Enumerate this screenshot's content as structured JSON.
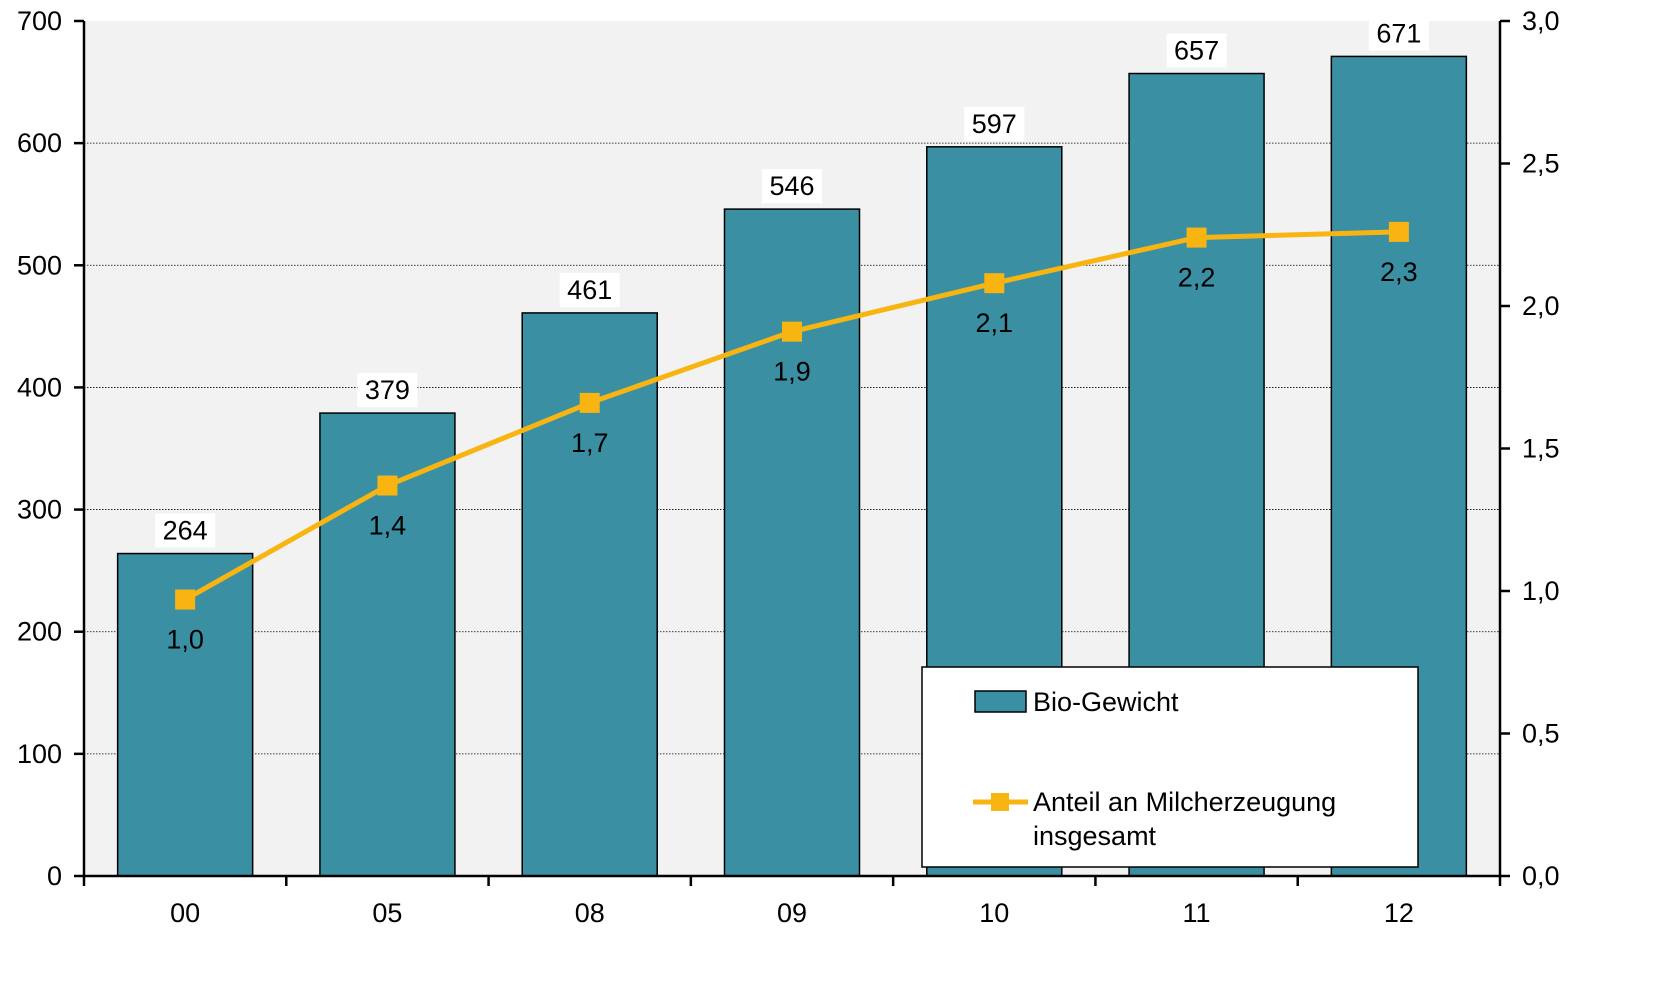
{
  "chart_data": {
    "type": "bar",
    "categories": [
      "00",
      "05",
      "08",
      "09",
      "10",
      "11",
      "12"
    ],
    "series": [
      {
        "name": "Bio-Gewicht",
        "type": "bar",
        "axis": "left",
        "color": "#3A8FA3",
        "values": [
          264,
          379,
          461,
          546,
          597,
          657,
          671
        ],
        "labels": [
          "264",
          "379",
          "461",
          "546",
          "597",
          "657",
          "671"
        ]
      },
      {
        "name": "Anteil an Milcherzeugung insgesamt",
        "name_lines": [
          "Anteil an Milcherzeugung",
          "insgesamt"
        ],
        "type": "line",
        "axis": "right",
        "color": "#F8B511",
        "values": [
          0.97,
          1.37,
          1.66,
          1.91,
          2.08,
          2.24,
          2.26
        ],
        "labels": [
          "1,0",
          "1,4",
          "1,7",
          "1,9",
          "2,1",
          "2,2",
          "2,3"
        ]
      }
    ],
    "y_left": {
      "min": 0,
      "max": 700,
      "step": 100,
      "tick_labels": [
        "0",
        "100",
        "200",
        "300",
        "400",
        "500",
        "600",
        "700"
      ]
    },
    "y_right": {
      "min": 0,
      "max": 3,
      "step": 0.5,
      "tick_labels": [
        "0,0",
        "0,5",
        "1,0",
        "1,5",
        "2,0",
        "2,5",
        "3,0"
      ]
    },
    "title": "",
    "xlabel": "",
    "ylabel": "",
    "grid": true,
    "legend_position": "bottom-right",
    "plot_background": "#F2F2F2"
  }
}
